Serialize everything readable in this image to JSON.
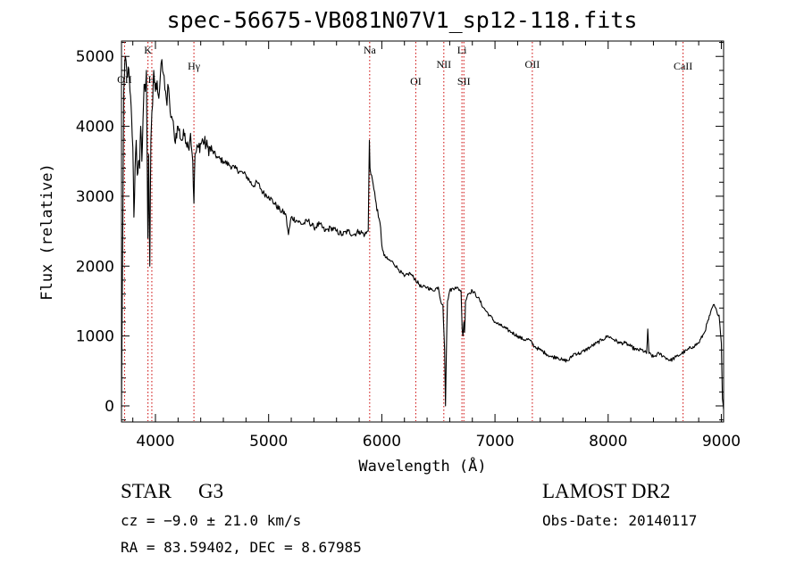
{
  "title": "spec-56675-VB081N07V1_sp12-118.fits",
  "chart_data": {
    "type": "line",
    "title": "spec-56675-VB081N07V1_sp12-118.fits",
    "xlabel": "Wavelength (Å)",
    "ylabel": "Flux (relative)",
    "xlim": [
      3700,
      9020
    ],
    "ylim": [
      -230,
      5220
    ],
    "xticks": [
      4000,
      5000,
      6000,
      7000,
      8000,
      9000
    ],
    "yticks": [
      0,
      1000,
      2000,
      3000,
      4000,
      5000
    ],
    "grid": false,
    "series": [
      {
        "x": [
          3700,
          3720,
          3735,
          3750,
          3760,
          3775,
          3790,
          3800,
          3810,
          3820,
          3830,
          3840,
          3850,
          3860,
          3870,
          3880,
          3890,
          3900,
          3910,
          3920,
          3933,
          3940,
          3950,
          3960,
          3968,
          3975,
          3985,
          4000,
          4015,
          4030,
          4050,
          4070,
          4090,
          4102,
          4110,
          4130,
          4150,
          4170,
          4200,
          4230,
          4260,
          4290,
          4310,
          4330,
          4340,
          4350,
          4380,
          4420,
          4460,
          4500,
          4550,
          4600,
          4650,
          4700,
          4750,
          4800,
          4861,
          4900,
          4950,
          5000,
          5050,
          5100,
          5150,
          5175,
          5200,
          5250,
          5300,
          5350,
          5400,
          5450,
          5500,
          5550,
          5600,
          5650,
          5700,
          5750,
          5800,
          5850,
          5880,
          5890,
          5896,
          5910,
          5930,
          5950,
          5970,
          5990,
          6000,
          6020,
          6050,
          6100,
          6150,
          6200,
          6250,
          6300,
          6350,
          6400,
          6450,
          6500,
          6520,
          6540,
          6555,
          6563,
          6570,
          6580,
          6600,
          6650,
          6700,
          6710,
          6717,
          6725,
          6731,
          6740,
          6760,
          6800,
          6850,
          6900,
          6950,
          7000,
          7050,
          7100,
          7150,
          7200,
          7250,
          7300,
          7350,
          7400,
          7450,
          7500,
          7550,
          7600,
          7650,
          7700,
          7750,
          7800,
          7850,
          7900,
          7950,
          8000,
          8050,
          8100,
          8150,
          8200,
          8250,
          8300,
          8340,
          8350,
          8360,
          8400,
          8450,
          8500,
          8550,
          8600,
          8650,
          8700,
          8750,
          8800,
          8850,
          8900,
          8930,
          8960,
          8980,
          9000,
          9010,
          9020
        ],
        "values": [
          -30,
          4500,
          5000,
          4700,
          4850,
          4500,
          4100,
          3700,
          2700,
          3400,
          3800,
          3300,
          3500,
          3400,
          4000,
          3500,
          4100,
          4600,
          4500,
          4800,
          2400,
          3600,
          2000,
          3800,
          4200,
          4300,
          4800,
          4500,
          4650,
          4400,
          4900,
          4750,
          4500,
          4300,
          4600,
          4200,
          4100,
          3800,
          4000,
          3800,
          3900,
          3700,
          3900,
          3500,
          2900,
          3600,
          3700,
          3800,
          3700,
          3650,
          3550,
          3500,
          3450,
          3400,
          3350,
          3300,
          3150,
          3200,
          3050,
          3000,
          2900,
          2800,
          2750,
          2450,
          2700,
          2650,
          2600,
          2650,
          2550,
          2600,
          2500,
          2550,
          2500,
          2450,
          2500,
          2450,
          2500,
          2450,
          2500,
          3800,
          3400,
          3300,
          3100,
          2900,
          2700,
          2550,
          2300,
          2150,
          2100,
          2050,
          1950,
          1850,
          1900,
          1800,
          1700,
          1700,
          1650,
          1700,
          1500,
          1450,
          800,
          0,
          700,
          1500,
          1650,
          1700,
          1650,
          1100,
          1000,
          1200,
          1050,
          1500,
          1600,
          1650,
          1550,
          1400,
          1300,
          1200,
          1150,
          1100,
          1050,
          1000,
          950,
          950,
          850,
          800,
          750,
          700,
          700,
          650,
          650,
          750,
          750,
          800,
          850,
          900,
          950,
          1000,
          950,
          900,
          900,
          850,
          800,
          800,
          750,
          1100,
          750,
          700,
          750,
          700,
          650,
          700,
          750,
          800,
          850,
          900,
          1050,
          1300,
          1450,
          1350,
          1300,
          900,
          100,
          -50
        ]
      }
    ],
    "lines": [
      {
        "label": "OII",
        "x": 3727
      },
      {
        "label": "K",
        "x": 3934
      },
      {
        "label": "H",
        "x": 3968
      },
      {
        "label": "Hγ",
        "x": 4340
      },
      {
        "label": "Na",
        "x": 5893
      },
      {
        "label": "OI",
        "x": 6300
      },
      {
        "label": "NII",
        "x": 6548
      },
      {
        "label": "Li",
        "x": 6708
      },
      {
        "label": "SII",
        "x": 6725
      },
      {
        "label": "OII",
        "x": 7330
      },
      {
        "label": "CaII",
        "x": 8662
      }
    ]
  },
  "info": {
    "object_class": "STAR",
    "subclass": "G3",
    "survey": "LAMOST DR2",
    "cz": "cz = −9.0 ± 21.0 km/s",
    "obs_date": "Obs-Date: 20140117",
    "radec": "RA =  83.59402, DEC =   8.67985"
  }
}
